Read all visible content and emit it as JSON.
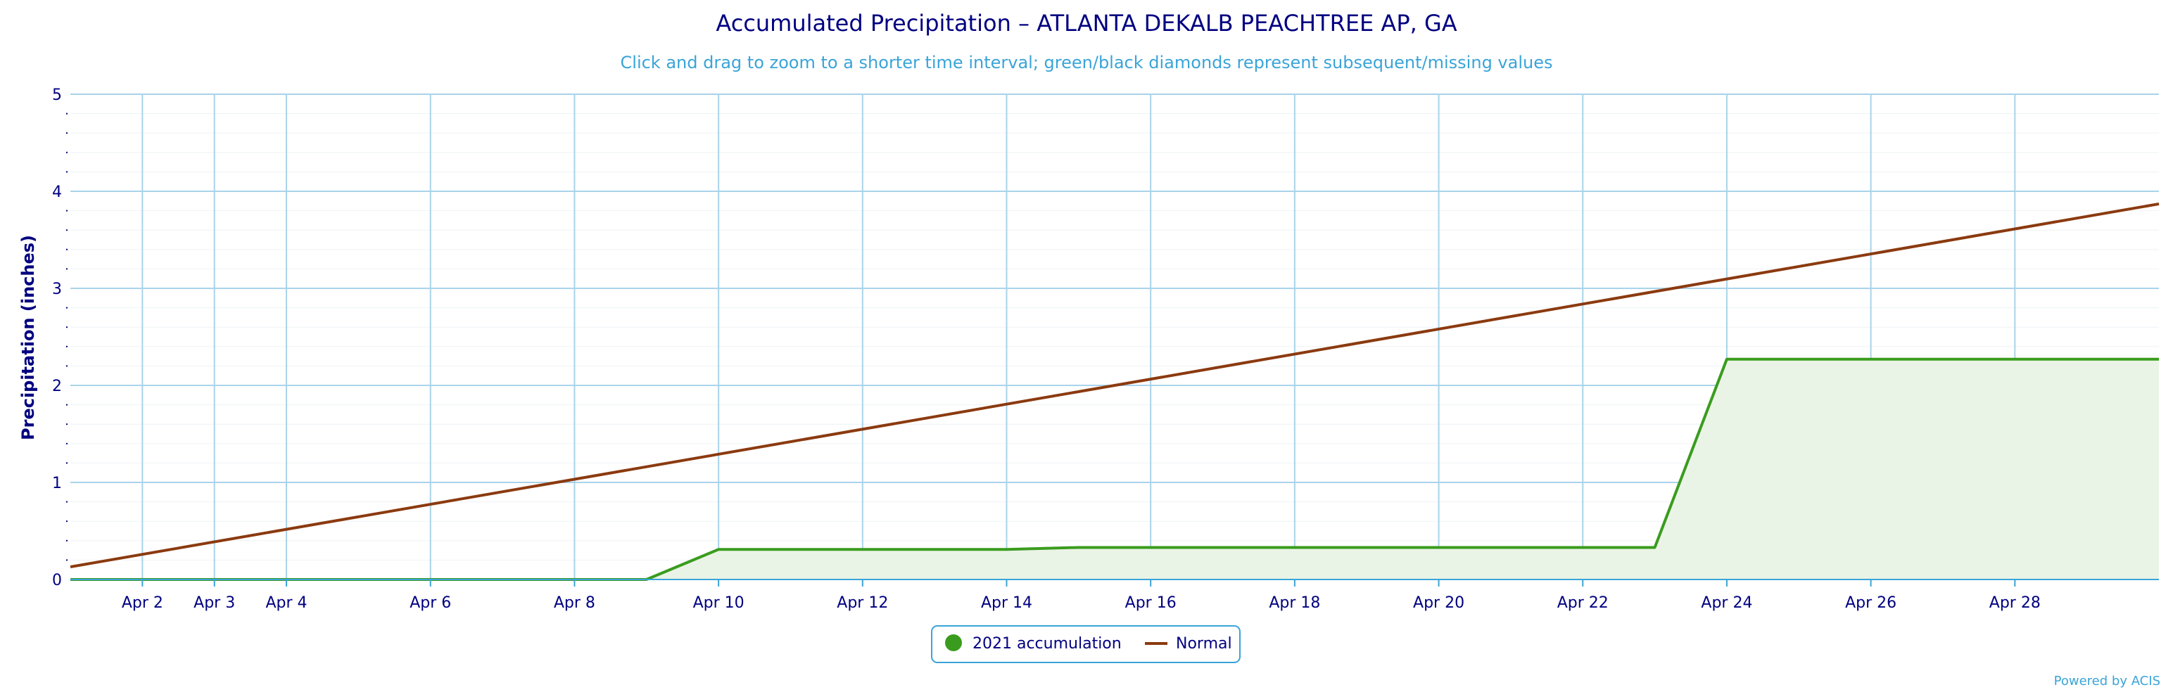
{
  "chart_data": {
    "type": "area",
    "title": "Accumulated Precipitation – ATLANTA DEKALB PEACHTREE AP, GA",
    "subtitle": "Click and drag to zoom to a shorter time interval; green/black diamonds represent subsequent/missing values",
    "ylabel": "Precipitation (inches)",
    "ylim": [
      0,
      5
    ],
    "yticks": [
      "0",
      "1",
      "2",
      "3",
      "4",
      "5"
    ],
    "xlim": [
      "Apr 1",
      "Apr 30"
    ],
    "xticks": [
      "Apr 2",
      "Apr 4",
      "Apr 6",
      "Apr 8",
      "Apr 10",
      "Apr 12",
      "Apr 14",
      "Apr 16",
      "Apr 18",
      "Apr 20",
      "Apr 22",
      "Apr 24",
      "Apr 26",
      "Apr 28",
      "Apr 3"
    ],
    "grid": true,
    "legend_position": "bottom-center",
    "credits": "Powered by ACIS",
    "series": [
      {
        "name": "2021 accumulation",
        "type": "area",
        "color": "#3a9c1e",
        "x": [
          "Apr 1",
          "Apr 2",
          "Apr 3",
          "Apr 4",
          "Apr 5",
          "Apr 6",
          "Apr 7",
          "Apr 8",
          "Apr 9",
          "Apr 10",
          "Apr 11",
          "Apr 12",
          "Apr 13",
          "Apr 14",
          "Apr 15",
          "Apr 16",
          "Apr 17",
          "Apr 18",
          "Apr 19",
          "Apr 20",
          "Apr 21",
          "Apr 22",
          "Apr 23",
          "Apr 24",
          "Apr 25",
          "Apr 26",
          "Apr 27",
          "Apr 28",
          "Apr 29",
          "Apr 30"
        ],
        "values": [
          0,
          0,
          0,
          0,
          0,
          0,
          0,
          0,
          0,
          0.31,
          0.31,
          0.31,
          0.31,
          0.31,
          0.33,
          0.33,
          0.33,
          0.33,
          0.33,
          0.33,
          0.33,
          0.33,
          0.33,
          2.27,
          2.27,
          2.27,
          2.27,
          2.27,
          2.27,
          2.27
        ]
      },
      {
        "name": "Normal",
        "type": "line",
        "color": "#8b3a0f",
        "x": [
          "Apr 1",
          "Apr 30"
        ],
        "values": [
          0.13,
          3.87
        ]
      }
    ]
  },
  "colors": {
    "grid": "#a9d3ea",
    "axis": "#3aa4d8",
    "area_fill": "#eaf4e6",
    "legend_border": "#3aa4d8"
  }
}
